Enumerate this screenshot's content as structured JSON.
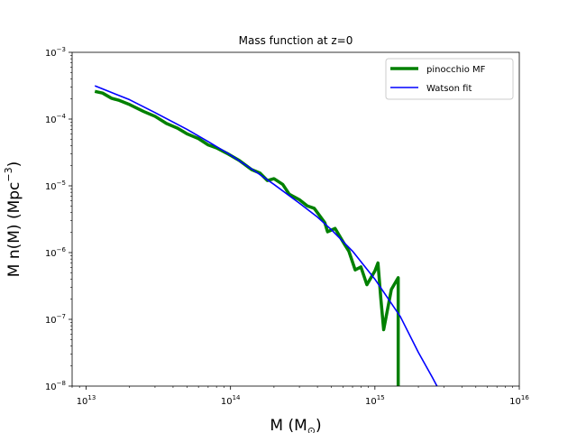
{
  "chart_data": {
    "type": "line",
    "title": "Mass function at z=0",
    "xlabel": "M (M",
    "xlabel_sub": "⊙",
    "xlabel_end": ")",
    "ylabel": "M n(M) (Mpc",
    "ylabel_sup": "−3",
    "ylabel_end": ")",
    "x_scale": "log",
    "y_scale": "log",
    "xlim": [
      8000000000000.0,
      1e+16
    ],
    "ylim": [
      1e-08,
      0.001
    ],
    "grid": false,
    "legend_position": "upper right",
    "x_ticks": [
      {
        "base": "10",
        "exp": "13",
        "value": 10000000000000.0
      },
      {
        "base": "10",
        "exp": "14",
        "value": 100000000000000.0
      },
      {
        "base": "10",
        "exp": "15",
        "value": 1000000000000000.0
      },
      {
        "base": "10",
        "exp": "16",
        "value": 1e+16
      }
    ],
    "y_ticks": [
      {
        "base": "10",
        "exp": "−8",
        "value": 1e-08
      },
      {
        "base": "10",
        "exp": "−7",
        "value": 1e-07
      },
      {
        "base": "10",
        "exp": "−6",
        "value": 1e-06
      },
      {
        "base": "10",
        "exp": "−5",
        "value": 1e-05
      },
      {
        "base": "10",
        "exp": "−4",
        "value": 0.0001
      },
      {
        "base": "10",
        "exp": "−3",
        "value": 0.001
      }
    ],
    "series": [
      {
        "name": "pinocchio MF",
        "color": "#008000",
        "points": [
          [
            11500000000000.0,
            0.00026
          ],
          [
            13000000000000.0,
            0.000245
          ],
          [
            15000000000000.0,
            0.000205
          ],
          [
            17000000000000.0,
            0.00019
          ],
          [
            20000000000000.0,
            0.000165
          ],
          [
            25000000000000.0,
            0.00013
          ],
          [
            30000000000000.0,
            0.00011
          ],
          [
            36000000000000.0,
            8.6e-05
          ],
          [
            43000000000000.0,
            7.3e-05
          ],
          [
            50000000000000.0,
            6e-05
          ],
          [
            60000000000000.0,
            5.1e-05
          ],
          [
            70000000000000.0,
            4.1e-05
          ],
          [
            80000000000000.0,
            3.7e-05
          ],
          [
            95000000000000.0,
            3.05e-05
          ],
          [
            115000000000000.0,
            2.4e-05
          ],
          [
            140000000000000.0,
            1.75e-05
          ],
          [
            160000000000000.0,
            1.55e-05
          ],
          [
            180000000000000.0,
            1.2e-05
          ],
          [
            200000000000000.0,
            1.28e-05
          ],
          [
            230000000000000.0,
            1.05e-05
          ],
          [
            255000000000000.0,
            7.5e-06
          ],
          [
            300000000000000.0,
            6.2e-06
          ],
          [
            340000000000000.0,
            5e-06
          ],
          [
            380000000000000.0,
            4.6e-06
          ],
          [
            450000000000000.0,
            2.8e-06
          ],
          [
            470000000000000.0,
            2.05e-06
          ],
          [
            530000000000000.0,
            2.3e-06
          ],
          [
            620000000000000.0,
            1.3e-06
          ],
          [
            660000000000000.0,
            1.05e-06
          ],
          [
            730000000000000.0,
            5.5e-07
          ],
          [
            800000000000000.0,
            6.1e-07
          ],
          [
            880000000000000.0,
            3.3e-07
          ],
          [
            1000000000000000.0,
            5.3e-07
          ],
          [
            1050000000000000.0,
            7e-07
          ],
          [
            1100000000000000.0,
            2e-07
          ],
          [
            1150000000000000.0,
            7e-08
          ],
          [
            1300000000000000.0,
            2.8e-07
          ],
          [
            1450000000000000.0,
            4.2e-07
          ],
          [
            1450000000000000.0,
            1e-08
          ]
        ]
      },
      {
        "name": "Watson fit",
        "color": "#0000ff",
        "points": [
          [
            11500000000000.0,
            0.000315
          ],
          [
            20000000000000.0,
            0.000195
          ],
          [
            30000000000000.0,
            0.000125
          ],
          [
            50000000000000.0,
            7e-05
          ],
          [
            70000000000000.0,
            4.6e-05
          ],
          [
            100000000000000.0,
            2.9e-05
          ],
          [
            150000000000000.0,
            1.62e-05
          ],
          [
            200000000000000.0,
            1.05e-05
          ],
          [
            300000000000000.0,
            5.5e-06
          ],
          [
            400000000000000.0,
            3.4e-06
          ],
          [
            500000000000000.0,
            2.2e-06
          ],
          [
            700000000000000.0,
            1.05e-06
          ],
          [
            1000000000000000.0,
            4e-07
          ],
          [
            1500000000000000.0,
            1.1e-07
          ],
          [
            2000000000000000.0,
            3.2e-08
          ],
          [
            2500000000000000.0,
            1.35e-08
          ],
          [
            2800000000000000.0,
            8.5e-09
          ]
        ]
      }
    ]
  }
}
